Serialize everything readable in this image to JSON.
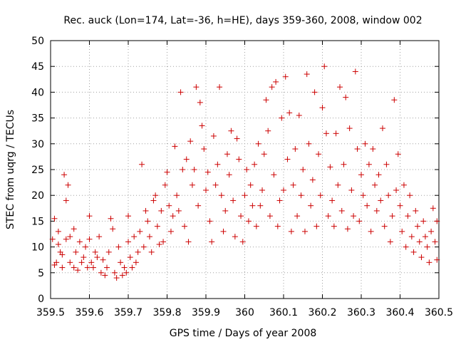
{
  "chart_data": {
    "type": "scatter",
    "title": "Rec. auck (Lon=174, Lat=-36, h=HE), days 359-360, 2008, window 002",
    "xlabel": "GPS time / Days of year 2008",
    "ylabel": "STEC from uqrg / TECUs",
    "xlim": [
      359.5,
      360.5
    ],
    "ylim": [
      0,
      50
    ],
    "xticks": [
      "359.5",
      "359.6",
      "359.7",
      "359.8",
      "359.9",
      "360",
      "360.1",
      "360.2",
      "360.3",
      "360.4",
      "360.5"
    ],
    "yticks": [
      "0",
      "5",
      "10",
      "15",
      "20",
      "25",
      "30",
      "35",
      "40",
      "45",
      "50"
    ],
    "grid": true,
    "marker": "+",
    "color": "#cc0000",
    "points": [
      [
        359.505,
        11.5
      ],
      [
        359.51,
        15.5
      ],
      [
        359.515,
        7
      ],
      [
        359.52,
        13
      ],
      [
        359.525,
        9
      ],
      [
        359.53,
        6
      ],
      [
        359.535,
        24
      ],
      [
        359.54,
        19
      ],
      [
        359.545,
        22
      ],
      [
        359.55,
        12
      ],
      [
        359.51,
        6.5
      ],
      [
        359.52,
        10.5
      ],
      [
        359.53,
        8.5
      ],
      [
        359.54,
        11.5
      ],
      [
        359.55,
        7
      ],
      [
        359.56,
        6
      ],
      [
        359.56,
        13.5
      ],
      [
        359.565,
        9
      ],
      [
        359.57,
        5.5
      ],
      [
        359.575,
        11
      ],
      [
        359.58,
        7
      ],
      [
        359.585,
        8
      ],
      [
        359.59,
        10
      ],
      [
        359.595,
        6
      ],
      [
        359.6,
        16
      ],
      [
        359.6,
        11.5
      ],
      [
        359.605,
        7
      ],
      [
        359.61,
        6
      ],
      [
        359.615,
        9
      ],
      [
        359.62,
        8
      ],
      [
        359.625,
        12
      ],
      [
        359.63,
        5
      ],
      [
        359.635,
        7.5
      ],
      [
        359.64,
        4.5
      ],
      [
        359.645,
        6
      ],
      [
        359.65,
        9
      ],
      [
        359.655,
        15.5
      ],
      [
        359.66,
        13.5
      ],
      [
        359.665,
        5
      ],
      [
        359.67,
        4
      ],
      [
        359.675,
        10
      ],
      [
        359.68,
        7
      ],
      [
        359.685,
        4.5
      ],
      [
        359.69,
        6
      ],
      [
        359.695,
        5
      ],
      [
        359.7,
        16
      ],
      [
        359.7,
        11
      ],
      [
        359.705,
        8
      ],
      [
        359.71,
        6
      ],
      [
        359.715,
        12
      ],
      [
        359.72,
        7
      ],
      [
        359.725,
        9
      ],
      [
        359.73,
        13
      ],
      [
        359.735,
        26
      ],
      [
        359.74,
        10
      ],
      [
        359.745,
        17
      ],
      [
        359.75,
        15
      ],
      [
        359.755,
        12
      ],
      [
        359.76,
        9
      ],
      [
        359.765,
        19
      ],
      [
        359.77,
        20
      ],
      [
        359.775,
        14
      ],
      [
        359.78,
        10.5
      ],
      [
        359.785,
        17
      ],
      [
        359.79,
        11
      ],
      [
        359.795,
        22
      ],
      [
        359.8,
        24.5
      ],
      [
        359.805,
        18
      ],
      [
        359.81,
        13
      ],
      [
        359.815,
        16
      ],
      [
        359.82,
        29.5
      ],
      [
        359.825,
        20
      ],
      [
        359.83,
        17
      ],
      [
        359.835,
        40
      ],
      [
        359.84,
        25
      ],
      [
        359.845,
        14
      ],
      [
        359.85,
        27
      ],
      [
        359.855,
        11
      ],
      [
        359.86,
        30.5
      ],
      [
        359.865,
        22
      ],
      [
        359.87,
        25
      ],
      [
        359.875,
        41
      ],
      [
        359.88,
        18
      ],
      [
        359.885,
        38
      ],
      [
        359.89,
        33.5
      ],
      [
        359.895,
        29
      ],
      [
        359.9,
        21
      ],
      [
        359.905,
        24.5
      ],
      [
        359.91,
        15
      ],
      [
        359.915,
        11
      ],
      [
        359.92,
        31.5
      ],
      [
        359.925,
        22
      ],
      [
        359.93,
        26
      ],
      [
        359.935,
        41
      ],
      [
        359.94,
        20
      ],
      [
        359.945,
        13
      ],
      [
        359.95,
        17
      ],
      [
        359.955,
        28
      ],
      [
        359.96,
        24
      ],
      [
        359.965,
        32.5
      ],
      [
        359.97,
        19
      ],
      [
        359.975,
        12
      ],
      [
        359.98,
        31
      ],
      [
        359.985,
        27
      ],
      [
        359.99,
        16
      ],
      [
        359.995,
        11
      ],
      [
        360.0,
        20
      ],
      [
        360.005,
        25
      ],
      [
        360.01,
        15
      ],
      [
        360.015,
        22
      ],
      [
        360.02,
        18
      ],
      [
        360.025,
        26
      ],
      [
        360.03,
        14
      ],
      [
        360.035,
        30
      ],
      [
        360.04,
        18
      ],
      [
        360.045,
        21
      ],
      [
        360.05,
        28
      ],
      [
        360.055,
        38.5
      ],
      [
        360.06,
        32.5
      ],
      [
        360.065,
        16
      ],
      [
        360.07,
        41
      ],
      [
        360.075,
        24
      ],
      [
        360.08,
        42
      ],
      [
        360.085,
        14
      ],
      [
        360.09,
        19
      ],
      [
        360.095,
        35
      ],
      [
        360.1,
        21
      ],
      [
        360.105,
        43
      ],
      [
        360.11,
        27
      ],
      [
        360.115,
        36
      ],
      [
        360.12,
        13
      ],
      [
        360.125,
        22
      ],
      [
        360.13,
        29
      ],
      [
        360.135,
        16
      ],
      [
        360.14,
        35.5
      ],
      [
        360.145,
        20
      ],
      [
        360.15,
        25
      ],
      [
        360.155,
        13
      ],
      [
        360.16,
        43.5
      ],
      [
        360.165,
        30
      ],
      [
        360.17,
        18
      ],
      [
        360.175,
        23
      ],
      [
        360.18,
        40
      ],
      [
        360.185,
        14
      ],
      [
        360.19,
        28
      ],
      [
        360.195,
        20
      ],
      [
        360.2,
        37
      ],
      [
        360.205,
        45
      ],
      [
        360.21,
        32
      ],
      [
        360.215,
        16
      ],
      [
        360.22,
        25.5
      ],
      [
        360.225,
        19
      ],
      [
        360.23,
        14
      ],
      [
        360.235,
        32
      ],
      [
        360.24,
        22
      ],
      [
        360.245,
        41
      ],
      [
        360.25,
        17
      ],
      [
        360.255,
        26
      ],
      [
        360.26,
        39
      ],
      [
        360.265,
        13.5
      ],
      [
        360.27,
        33
      ],
      [
        360.275,
        21
      ],
      [
        360.28,
        16
      ],
      [
        360.285,
        44
      ],
      [
        360.29,
        29
      ],
      [
        360.295,
        15
      ],
      [
        360.3,
        24
      ],
      [
        360.305,
        20
      ],
      [
        360.31,
        30
      ],
      [
        360.315,
        18
      ],
      [
        360.32,
        26
      ],
      [
        360.325,
        13
      ],
      [
        360.33,
        29
      ],
      [
        360.335,
        22
      ],
      [
        360.34,
        17
      ],
      [
        360.345,
        24
      ],
      [
        360.35,
        19
      ],
      [
        360.355,
        33
      ],
      [
        360.36,
        14
      ],
      [
        360.365,
        26
      ],
      [
        360.37,
        20
      ],
      [
        360.375,
        11
      ],
      [
        360.38,
        16
      ],
      [
        360.385,
        38.5
      ],
      [
        360.39,
        21
      ],
      [
        360.395,
        28
      ],
      [
        360.4,
        18
      ],
      [
        360.405,
        13
      ],
      [
        360.41,
        22
      ],
      [
        360.415,
        10
      ],
      [
        360.42,
        16
      ],
      [
        360.425,
        20
      ],
      [
        360.43,
        12
      ],
      [
        360.435,
        9
      ],
      [
        360.44,
        17
      ],
      [
        360.445,
        14
      ],
      [
        360.45,
        11
      ],
      [
        360.455,
        8
      ],
      [
        360.46,
        15
      ],
      [
        360.465,
        12
      ],
      [
        360.47,
        10
      ],
      [
        360.475,
        7
      ],
      [
        360.48,
        13
      ],
      [
        360.485,
        17.5
      ],
      [
        360.49,
        11
      ],
      [
        360.495,
        7.5
      ],
      [
        360.495,
        15
      ]
    ]
  }
}
